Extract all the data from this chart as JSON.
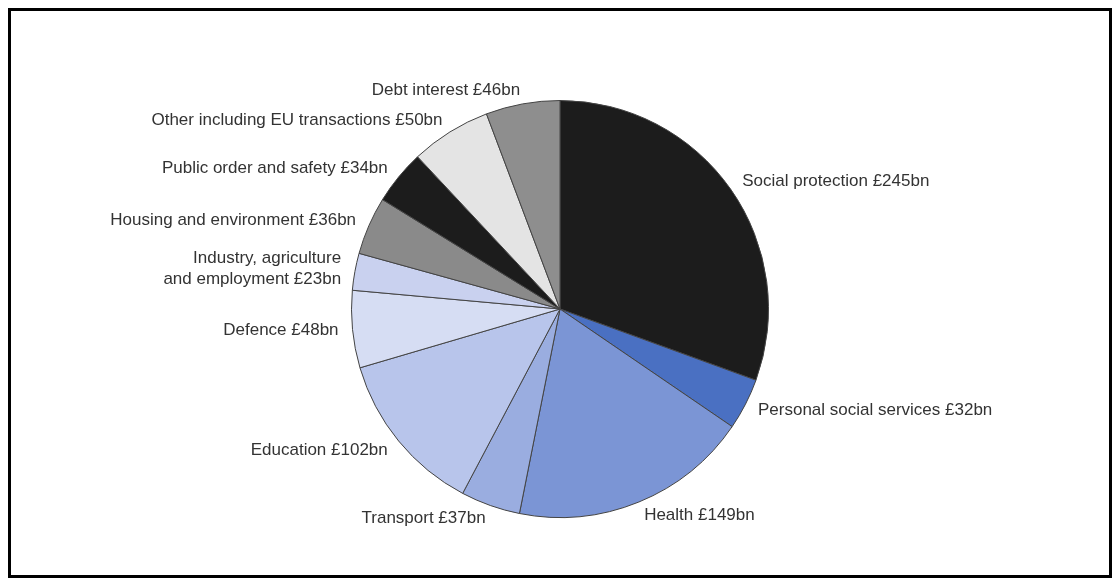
{
  "chart_data": {
    "type": "pie",
    "categories": [
      "Social protection",
      "Personal social services",
      "Health",
      "Transport",
      "Education",
      "Defence",
      "Industry, agriculture and employment",
      "Housing and environment",
      "Public order and safety",
      "Other including EU transactions",
      "Debt interest"
    ],
    "values": [
      245,
      32,
      149,
      37,
      102,
      48,
      23,
      36,
      34,
      50,
      46
    ],
    "value_labels": [
      "£245bn",
      "£32bn",
      "£149bn",
      "£37bn",
      "£102bn",
      "£48bn",
      "£23bn",
      "£36bn",
      "£34bn",
      "£50bn",
      "£46bn"
    ],
    "colors": [
      "#1c1c1c",
      "#4a70c2",
      "#7b95d5",
      "#9aade0",
      "#b8c5eb",
      "#d6ddf3",
      "#c9d1ef",
      "#8a8a8a",
      "#1c1c1c",
      "#e4e4e4",
      "#8e8e8e"
    ],
    "legend": false
  }
}
